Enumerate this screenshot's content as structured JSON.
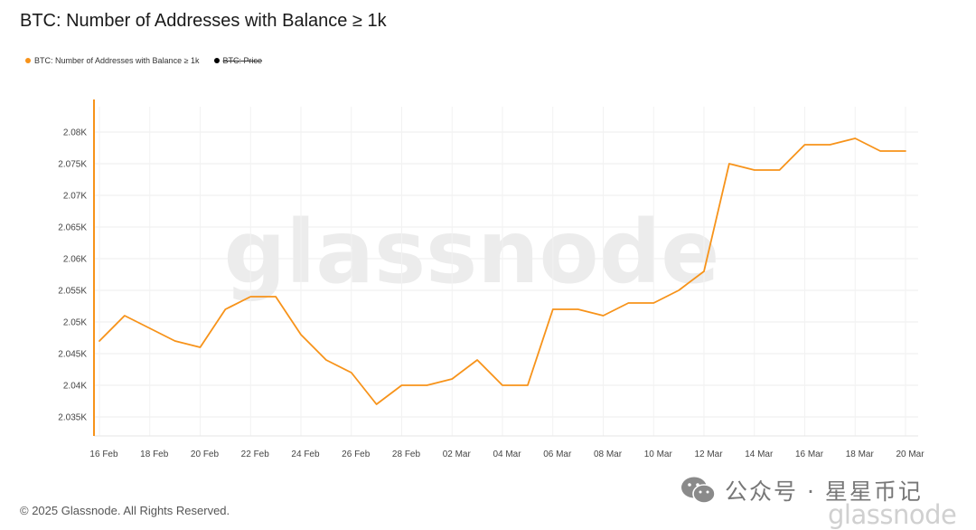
{
  "header": {
    "title": "BTC: Number of Addresses with Balance ≥ 1k"
  },
  "legend": {
    "items": [
      {
        "label": "BTC: Number of Addresses with Balance ≥ 1k",
        "color": "#f7931a",
        "active": true
      },
      {
        "label": "BTC: Price",
        "color": "#000000",
        "active": false
      }
    ]
  },
  "watermark": {
    "text": "glassnode"
  },
  "footer": {
    "copyright": "© 2025 Glassnode. All Rights Reserved."
  },
  "wechat": {
    "text": "公众号 · 星星币记",
    "icon": "wechat-icon"
  },
  "brand_bottom": {
    "text": "glassnode"
  },
  "chart_data": {
    "type": "line",
    "title": "BTC: Number of Addresses with Balance ≥ 1k",
    "xlabel": "",
    "ylabel": "",
    "x": [
      "16 Feb",
      "17 Feb",
      "18 Feb",
      "19 Feb",
      "20 Feb",
      "21 Feb",
      "22 Feb",
      "23 Feb",
      "24 Feb",
      "25 Feb",
      "26 Feb",
      "27 Feb",
      "28 Feb",
      "01 Mar",
      "02 Mar",
      "03 Mar",
      "04 Mar",
      "05 Mar",
      "06 Mar",
      "07 Mar",
      "08 Mar",
      "09 Mar",
      "10 Mar",
      "11 Mar",
      "12 Mar",
      "13 Mar",
      "14 Mar",
      "15 Mar",
      "16 Mar",
      "17 Mar",
      "18 Mar",
      "19 Mar",
      "20 Mar"
    ],
    "series": [
      {
        "name": "BTC: Number of Addresses with Balance ≥ 1k",
        "color": "#f7931a",
        "values": [
          2047,
          2051,
          2049,
          2047,
          2046,
          2052,
          2054,
          2054,
          2048,
          2044,
          2042,
          2037,
          2040,
          2040,
          2041,
          2044,
          2040,
          2040,
          2052,
          2052,
          2051,
          2053,
          2053,
          2055,
          2058,
          2075,
          2074,
          2074,
          2078,
          2078,
          2079,
          2077,
          2077
        ]
      }
    ],
    "x_tick_labels": [
      "16 Feb",
      "18 Feb",
      "20 Feb",
      "22 Feb",
      "24 Feb",
      "26 Feb",
      "28 Feb",
      "02 Mar",
      "04 Mar",
      "06 Mar",
      "08 Mar",
      "10 Mar",
      "12 Mar",
      "14 Mar",
      "16 Mar",
      "18 Mar",
      "20 Mar"
    ],
    "y_ticks": [
      2035,
      2040,
      2045,
      2050,
      2055,
      2060,
      2065,
      2070,
      2075,
      2080
    ],
    "y_tick_labels": [
      "2.035K",
      "2.04K",
      "2.045K",
      "2.05K",
      "2.055K",
      "2.06K",
      "2.065K",
      "2.07K",
      "2.075K",
      "2.08K"
    ],
    "ylim": [
      2032,
      2084
    ],
    "grid": true,
    "legend_position": "top-left"
  }
}
